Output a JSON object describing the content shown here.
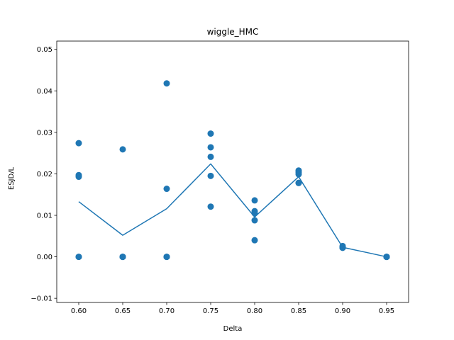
{
  "chart_data": {
    "type": "scatter",
    "title": "wiggle_HMC",
    "xlabel": "Delta",
    "ylabel": "ESJD/L",
    "xlim": [
      0.575,
      0.975
    ],
    "ylim": [
      -0.011,
      0.052
    ],
    "xticks": [
      0.6,
      0.65,
      0.7,
      0.75,
      0.8,
      0.85,
      0.9,
      0.95
    ],
    "xtick_labels": [
      "0.60",
      "0.65",
      "0.70",
      "0.75",
      "0.80",
      "0.85",
      "0.90",
      "0.95"
    ],
    "yticks": [
      -0.01,
      0.0,
      0.01,
      0.02,
      0.03,
      0.04,
      0.05
    ],
    "ytick_labels": [
      "−0.01",
      "0.00",
      "0.01",
      "0.02",
      "0.03",
      "0.04",
      "0.05"
    ],
    "grid": false,
    "color": "#1f77b4",
    "series": [
      {
        "kind": "scatter",
        "points": [
          [
            0.6,
            0.0274
          ],
          [
            0.6,
            0.0197
          ],
          [
            0.6,
            0.0193
          ],
          [
            0.6,
            0.0
          ],
          [
            0.6,
            0.0
          ],
          [
            0.65,
            0.0259
          ],
          [
            0.65,
            0.0
          ],
          [
            0.65,
            0.0
          ],
          [
            0.65,
            0.0
          ],
          [
            0.65,
            0.0
          ],
          [
            0.7,
            0.0418
          ],
          [
            0.7,
            0.0164
          ],
          [
            0.7,
            0.0
          ],
          [
            0.7,
            0.0
          ],
          [
            0.7,
            0.0
          ],
          [
            0.75,
            0.0297
          ],
          [
            0.75,
            0.0264
          ],
          [
            0.75,
            0.0241
          ],
          [
            0.75,
            0.0195
          ],
          [
            0.75,
            0.0121
          ],
          [
            0.8,
            0.0136
          ],
          [
            0.8,
            0.011
          ],
          [
            0.8,
            0.0105
          ],
          [
            0.8,
            0.0088
          ],
          [
            0.8,
            0.004
          ],
          [
            0.85,
            0.0208
          ],
          [
            0.85,
            0.0204
          ],
          [
            0.85,
            0.0199
          ],
          [
            0.85,
            0.0178
          ],
          [
            0.85,
            0.0178
          ],
          [
            0.9,
            0.0026
          ],
          [
            0.9,
            0.0024
          ],
          [
            0.9,
            0.0022
          ],
          [
            0.9,
            0.0022
          ],
          [
            0.9,
            0.0022
          ],
          [
            0.95,
            0.0
          ],
          [
            0.95,
            0.0
          ],
          [
            0.95,
            0.0
          ],
          [
            0.95,
            0.0
          ],
          [
            0.95,
            0.0
          ]
        ]
      },
      {
        "kind": "line",
        "x": [
          0.6,
          0.65,
          0.7,
          0.75,
          0.8,
          0.85,
          0.9,
          0.95
        ],
        "y": [
          0.0133,
          0.0052,
          0.0116,
          0.0224,
          0.0096,
          0.0193,
          0.0023,
          0.0
        ]
      }
    ]
  }
}
